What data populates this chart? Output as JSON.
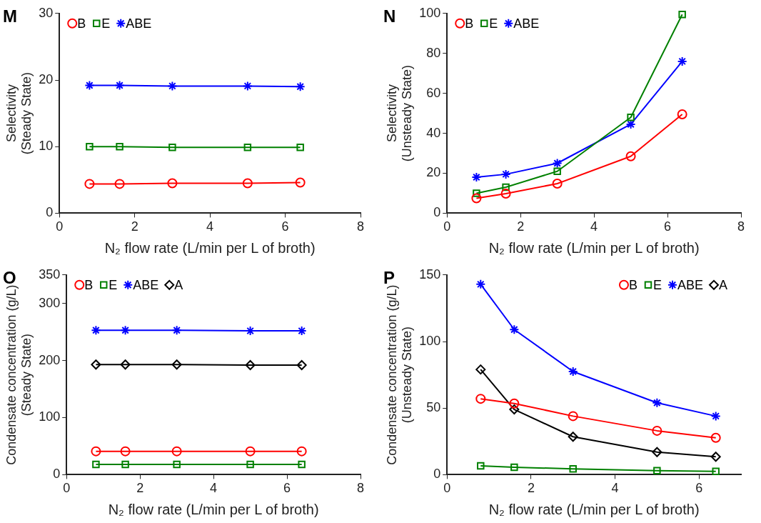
{
  "chart_data": [
    {
      "type": "line",
      "title": "M",
      "xlabel": "N₂ flow rate (L/min per L of broth)",
      "ylabel": "Selectivity\n(Steady State)",
      "x": [
        0.8,
        1.6,
        3,
        5,
        6.4
      ],
      "xlim": [
        0,
        8
      ],
      "xticks": [
        0,
        2,
        4,
        6,
        8
      ],
      "ylim": [
        0,
        30
      ],
      "yticks": [
        0,
        10,
        20,
        30
      ],
      "grid": false,
      "legend": "top left",
      "series": [
        {
          "name": "B",
          "color": "#ff0000",
          "marker": "circle",
          "values": [
            4.4,
            4.4,
            4.5,
            4.5,
            4.6
          ]
        },
        {
          "name": "E",
          "color": "#008000",
          "marker": "square",
          "values": [
            10,
            10,
            9.9,
            9.9,
            9.9
          ]
        },
        {
          "name": "ABE",
          "color": "#0000ff",
          "marker": "cross",
          "values": [
            19.2,
            19.2,
            19.1,
            19.1,
            19
          ]
        }
      ]
    },
    {
      "type": "line",
      "title": "N",
      "xlabel": "N₂ flow rate (L/min per L of broth)",
      "ylabel": "Selectivity\n(Unsteady State)",
      "x": [
        0.8,
        1.6,
        3,
        5,
        6.4
      ],
      "xlim": [
        0,
        8
      ],
      "xticks": [
        0,
        2,
        4,
        6,
        8
      ],
      "ylim": [
        0,
        100
      ],
      "yticks": [
        0,
        20,
        40,
        60,
        80,
        100
      ],
      "grid": false,
      "legend": "top left",
      "series": [
        {
          "name": "B",
          "color": "#ff0000",
          "marker": "circle",
          "values": [
            7.5,
            9.8,
            14.8,
            28.5,
            49.5
          ]
        },
        {
          "name": "E",
          "color": "#008000",
          "marker": "square",
          "values": [
            10,
            13,
            21,
            48,
            99.5
          ]
        },
        {
          "name": "ABE",
          "color": "#0000ff",
          "marker": "cross",
          "values": [
            18,
            19.5,
            25,
            44.5,
            76
          ]
        }
      ]
    },
    {
      "type": "line",
      "title": "O",
      "xlabel": "N₂ flow rate (L/min per L of broth)",
      "ylabel": "Condensate concentration (g/L)\n(Steady State)",
      "x": [
        0.8,
        1.6,
        3,
        5,
        6.4
      ],
      "xlim": [
        0,
        8
      ],
      "xticks": [
        0,
        2,
        4,
        6,
        8
      ],
      "ylim": [
        0,
        350
      ],
      "yticks": [
        0,
        100,
        200,
        300,
        350
      ],
      "grid": false,
      "legend": "top left",
      "series": [
        {
          "name": "B",
          "color": "#ff0000",
          "marker": "circle",
          "values": [
            41,
            41,
            41,
            41,
            41
          ]
        },
        {
          "name": "E",
          "color": "#008000",
          "marker": "square",
          "values": [
            18,
            18,
            18,
            18,
            18
          ]
        },
        {
          "name": "ABE",
          "color": "#0000ff",
          "marker": "cross",
          "values": [
            253,
            253,
            253,
            252,
            252
          ]
        },
        {
          "name": "A",
          "color": "#000000",
          "marker": "diamond",
          "values": [
            193,
            193,
            193,
            192,
            192
          ]
        }
      ]
    },
    {
      "type": "line",
      "title": "P",
      "xlabel": "N₂ flow rate (L/min per L of broth)",
      "ylabel": "Condensate concentration (g/L)\n(Unsteady State)",
      "x": [
        0.8,
        1.6,
        3,
        5,
        6.4
      ],
      "xlim": [
        0,
        7
      ],
      "xticks": [
        0,
        2,
        4,
        6
      ],
      "ylim": [
        0,
        150
      ],
      "yticks": [
        0,
        50,
        100,
        150
      ],
      "grid": false,
      "legend": "top right",
      "series": [
        {
          "name": "B",
          "color": "#ff0000",
          "marker": "circle",
          "values": [
            57,
            53.5,
            44,
            33,
            27.7
          ]
        },
        {
          "name": "E",
          "color": "#008000",
          "marker": "square",
          "values": [
            6.7,
            5.6,
            4.4,
            3,
            2.5
          ]
        },
        {
          "name": "ABE",
          "color": "#0000ff",
          "marker": "cross",
          "values": [
            143,
            109,
            77.5,
            54,
            44
          ]
        },
        {
          "name": "A",
          "color": "#000000",
          "marker": "diamond",
          "values": [
            79,
            49,
            28.5,
            17,
            13.5
          ]
        }
      ]
    }
  ]
}
